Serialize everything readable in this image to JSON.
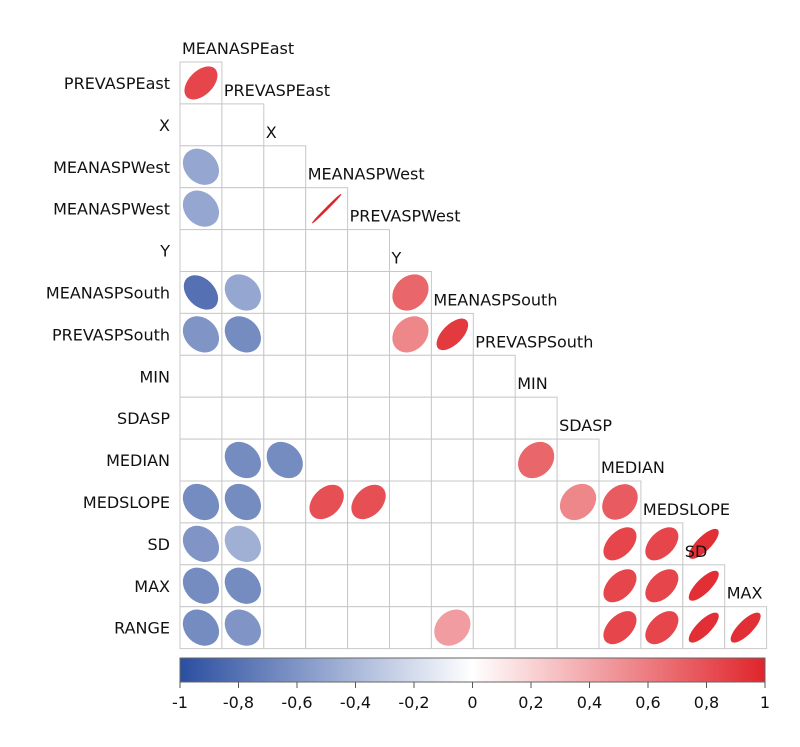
{
  "chart_data": {
    "type": "heatmap",
    "subtype": "correlation-ellipse-lower-triangle",
    "variables": [
      "MEANASPEast",
      "PREVASPEast",
      "X",
      "MEANASPWest",
      "PREVASPWest",
      "Y",
      "MEANASPSouth",
      "PREVASPSouth",
      "MIN",
      "SDASP",
      "MEDIAN",
      "MEDSLOPE",
      "SD",
      "MAX",
      "RANGE"
    ],
    "row_labels": [
      "PREVASPEast",
      "X",
      "MEANASPWest",
      "MEANASPWest",
      "Y",
      "MEANASPSouth",
      "PREVASPSouth",
      "MIN",
      "SDASP",
      "MEDIAN",
      "MEDSLOPE",
      "SD",
      "MAX",
      "RANGE"
    ],
    "diagonal_labels": [
      "MEANASPEast",
      "PREVASPEast",
      "X",
      "MEANASPWest",
      "PREVASPWest",
      "Y",
      "MEANASPSouth",
      "PREVASPSouth",
      "MIN",
      "SDASP",
      "MEDIAN",
      "MEDSLOPE",
      "SD",
      "MAX"
    ],
    "cells": [
      {
        "row": 0,
        "col": 0,
        "r": 0.85
      },
      {
        "row": 2,
        "col": 0,
        "r": -0.5
      },
      {
        "row": 3,
        "col": 0,
        "r": -0.5
      },
      {
        "row": 3,
        "col": 3,
        "r": 1.0
      },
      {
        "row": 5,
        "col": 0,
        "r": -0.8
      },
      {
        "row": 5,
        "col": 1,
        "r": -0.5
      },
      {
        "row": 5,
        "col": 5,
        "r": 0.7
      },
      {
        "row": 6,
        "col": 0,
        "r": -0.6
      },
      {
        "row": 6,
        "col": 1,
        "r": -0.65
      },
      {
        "row": 6,
        "col": 5,
        "r": 0.55
      },
      {
        "row": 6,
        "col": 6,
        "r": 0.9
      },
      {
        "row": 9,
        "col": 1,
        "r": -0.65
      },
      {
        "row": 9,
        "col": 2,
        "r": -0.65
      },
      {
        "row": 9,
        "col": 8,
        "r": 0.7
      },
      {
        "row": 10,
        "col": 0,
        "r": -0.65
      },
      {
        "row": 10,
        "col": 1,
        "r": -0.65
      },
      {
        "row": 10,
        "col": 3,
        "r": 0.8
      },
      {
        "row": 10,
        "col": 4,
        "r": 0.8
      },
      {
        "row": 10,
        "col": 9,
        "r": 0.55
      },
      {
        "row": 10,
        "col": 10,
        "r": 0.75
      },
      {
        "row": 11,
        "col": 0,
        "r": -0.6
      },
      {
        "row": 11,
        "col": 1,
        "r": -0.45
      },
      {
        "row": 11,
        "col": 10,
        "r": 0.85
      },
      {
        "row": 11,
        "col": 11,
        "r": 0.85
      },
      {
        "row": 11,
        "col": 12,
        "r": 0.95
      },
      {
        "row": 12,
        "col": 0,
        "r": -0.65
      },
      {
        "row": 12,
        "col": 1,
        "r": -0.65
      },
      {
        "row": 12,
        "col": 10,
        "r": 0.85
      },
      {
        "row": 12,
        "col": 11,
        "r": 0.85
      },
      {
        "row": 12,
        "col": 12,
        "r": 0.95
      },
      {
        "row": 13,
        "col": 0,
        "r": -0.65
      },
      {
        "row": 13,
        "col": 1,
        "r": -0.6
      },
      {
        "row": 13,
        "col": 6,
        "r": 0.45
      },
      {
        "row": 13,
        "col": 10,
        "r": 0.85
      },
      {
        "row": 13,
        "col": 11,
        "r": 0.85
      },
      {
        "row": 13,
        "col": 12,
        "r": 0.95
      },
      {
        "row": 13,
        "col": 13,
        "r": 0.95
      }
    ],
    "colorbar": {
      "min": -1,
      "max": 1,
      "ticks": [
        "-1",
        "-0,8",
        "-0,6",
        "-0,4",
        "-0,2",
        "0",
        "0,2",
        "0,4",
        "0,6",
        "0,8",
        "1"
      ],
      "colors": {
        "negative": "#2b4ea0",
        "neutral": "#ffffff",
        "positive": "#e0242b"
      }
    }
  }
}
